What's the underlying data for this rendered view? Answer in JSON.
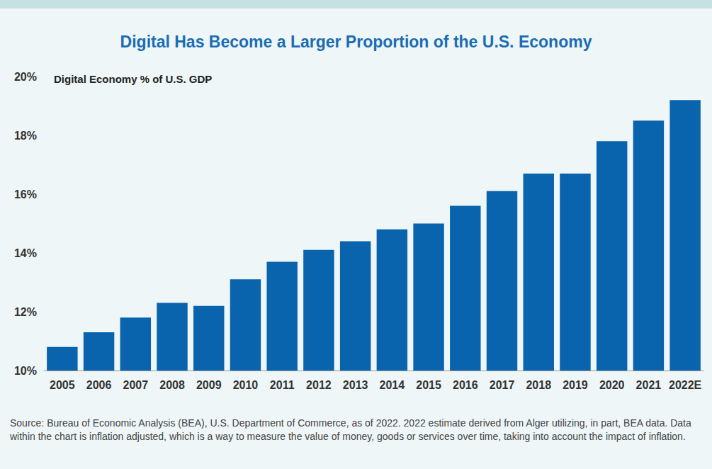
{
  "chart_data": {
    "type": "bar",
    "title": "Digital Has Become a Larger Proportion of the U.S. Economy",
    "subtitle": "Digital Economy % of U.S. GDP",
    "source": "Source: Bureau of Economic Analysis (BEA), U.S. Department of Commerce, as of 2022. 2022 estimate derived from Alger utilizing, in part, BEA data. Data within the chart is inflation adjusted, which is a way to measure the value of money, goods or services over time, taking into account the impact of inflation.",
    "categories": [
      "2005",
      "2006",
      "2007",
      "2008",
      "2009",
      "2010",
      "2011",
      "2012",
      "2013",
      "2014",
      "2015",
      "2016",
      "2017",
      "2018",
      "2019",
      "2020",
      "2021",
      "2022E"
    ],
    "values": [
      10.8,
      11.3,
      11.8,
      12.3,
      12.2,
      13.1,
      13.7,
      14.1,
      14.4,
      14.8,
      15.0,
      15.6,
      16.1,
      16.7,
      16.7,
      17.8,
      18.5,
      19.2
    ],
    "color": "#0a63ad",
    "ylim": [
      10,
      20
    ],
    "yticks": [
      {
        "value": 10,
        "label": "10%"
      },
      {
        "value": 12,
        "label": "12%"
      },
      {
        "value": 14,
        "label": "14%"
      },
      {
        "value": 16,
        "label": "16%"
      },
      {
        "value": 18,
        "label": "18%"
      },
      {
        "value": 20,
        "label": "20%"
      }
    ],
    "grid": false
  }
}
